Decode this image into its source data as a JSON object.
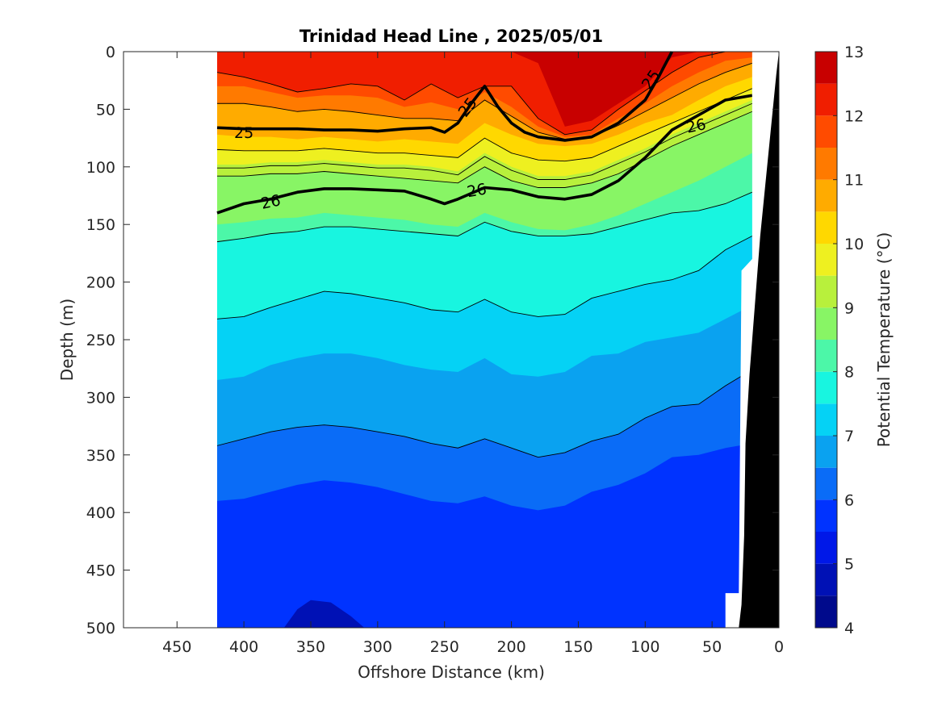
{
  "chart_data": {
    "type": "heatmap",
    "title": "Trinidad Head Line , 2025/05/01",
    "xlabel": "Offshore Distance (km)",
    "ylabel": "Depth (m)",
    "xlim": [
      490,
      0
    ],
    "ylim": [
      0,
      500
    ],
    "x_reversed": true,
    "y_reversed": true,
    "xticks": [
      450,
      400,
      350,
      300,
      250,
      200,
      150,
      100,
      50,
      0
    ],
    "yticks": [
      0,
      50,
      100,
      150,
      200,
      250,
      300,
      350,
      400,
      450,
      500
    ],
    "colorbar": {
      "label": "Potential Temperature (°C)",
      "min": 4,
      "max": 13,
      "step": 0.5,
      "ticks": [
        4,
        5,
        6,
        7,
        8,
        9,
        10,
        11,
        12,
        13
      ],
      "colors": [
        "#000a8c",
        "#0011b5",
        "#0018e8",
        "#0033ff",
        "#0a6cf7",
        "#0aa2f0",
        "#05d2f5",
        "#18f5e0",
        "#4cf7a8",
        "#88f565",
        "#b8f03c",
        "#eef020",
        "#ffd800",
        "#ffab00",
        "#ff7a00",
        "#ff4b00",
        "#f01e00",
        "#c80000"
      ]
    },
    "data_extent_x": [
      420,
      20
    ],
    "x": [
      420,
      400,
      380,
      360,
      340,
      320,
      300,
      280,
      260,
      240,
      220,
      200,
      180,
      160,
      140,
      120,
      100,
      80,
      60,
      40,
      20
    ],
    "isotherms": [
      {
        "temp": 12,
        "depth": [
          0,
          0,
          0,
          0,
          0,
          0,
          0,
          0,
          0,
          0,
          0,
          0,
          10,
          65,
          60,
          45,
          30,
          5,
          0,
          0,
          0
        ]
      },
      {
        "temp": 11.5,
        "depth": [
          18,
          22,
          28,
          35,
          32,
          28,
          30,
          42,
          28,
          40,
          30,
          30,
          58,
          72,
          68,
          50,
          34,
          18,
          5,
          0,
          0
        ]
      },
      {
        "temp": 11,
        "depth": [
          30,
          30,
          35,
          40,
          38,
          38,
          40,
          48,
          44,
          50,
          35,
          48,
          65,
          74,
          72,
          58,
          45,
          30,
          18,
          8,
          5
        ]
      },
      {
        "temp": 10.5,
        "depth": [
          45,
          45,
          48,
          52,
          50,
          52,
          55,
          58,
          58,
          60,
          42,
          56,
          70,
          76,
          74,
          64,
          52,
          40,
          28,
          18,
          10
        ]
      },
      {
        "temp": 10,
        "depth": [
          72,
          74,
          74,
          76,
          74,
          76,
          78,
          76,
          78,
          80,
          62,
          72,
          80,
          82,
          80,
          72,
          62,
          55,
          42,
          30,
          22
        ]
      },
      {
        "temp": 9.5,
        "depth": [
          85,
          86,
          86,
          86,
          84,
          86,
          88,
          88,
          90,
          92,
          75,
          88,
          94,
          95,
          92,
          82,
          72,
          62,
          52,
          42,
          32
        ]
      },
      {
        "temp": 9,
        "depth": [
          98,
          98,
          96,
          96,
          94,
          96,
          98,
          98,
          100,
          104,
          88,
          100,
          108,
          108,
          104,
          94,
          84,
          72,
          62,
          52,
          42
        ]
      },
      {
        "temp": 8.5,
        "depth": [
          108,
          108,
          106,
          106,
          104,
          106,
          108,
          110,
          112,
          114,
          100,
          112,
          118,
          118,
          114,
          106,
          94,
          82,
          72,
          62,
          52
        ]
      },
      {
        "temp": 8,
        "depth": [
          150,
          148,
          145,
          144,
          140,
          142,
          144,
          146,
          150,
          152,
          140,
          148,
          154,
          155,
          150,
          142,
          132,
          122,
          112,
          100,
          88
        ]
      },
      {
        "temp": 7.5,
        "depth": [
          165,
          162,
          158,
          156,
          152,
          152,
          154,
          156,
          158,
          160,
          148,
          156,
          160,
          160,
          158,
          152,
          146,
          140,
          138,
          132,
          122
        ]
      },
      {
        "temp": 7,
        "depth": [
          232,
          230,
          222,
          215,
          208,
          210,
          214,
          218,
          224,
          226,
          215,
          226,
          230,
          228,
          214,
          208,
          202,
          198,
          190,
          172,
          160
        ]
      },
      {
        "temp": 6.5,
        "depth": [
          285,
          282,
          272,
          266,
          262,
          262,
          266,
          272,
          276,
          278,
          266,
          280,
          282,
          278,
          264,
          262,
          252,
          248,
          244,
          232,
          220
        ]
      },
      {
        "temp": 6,
        "depth": [
          342,
          336,
          330,
          326,
          324,
          326,
          330,
          334,
          340,
          344,
          336,
          344,
          352,
          348,
          338,
          332,
          318,
          308,
          306,
          290,
          276
        ]
      },
      {
        "temp": 5.5,
        "depth": [
          390,
          388,
          382,
          376,
          372,
          374,
          378,
          384,
          390,
          392,
          386,
          394,
          398,
          394,
          382,
          376,
          366,
          352,
          350,
          344,
          340
        ]
      },
      {
        "temp": 5,
        "depth": [
          500,
          500,
          500,
          500,
          500,
          500,
          500,
          500,
          500,
          500,
          500,
          500,
          500,
          500,
          500,
          500,
          500,
          500,
          500,
          500,
          500
        ]
      }
    ],
    "density_contours": [
      {
        "label": "25",
        "x": [
          420,
          400,
          380,
          360,
          340,
          320,
          300,
          280,
          260,
          250,
          240,
          230,
          220,
          210,
          200,
          190,
          180,
          160,
          140,
          120,
          100,
          90,
          80
        ],
        "depth": [
          66,
          67,
          67,
          67,
          68,
          68,
          69,
          67,
          66,
          70,
          62,
          45,
          30,
          48,
          62,
          70,
          74,
          77,
          74,
          62,
          42,
          22,
          0
        ]
      },
      {
        "label": "26",
        "x": [
          420,
          400,
          380,
          360,
          340,
          320,
          300,
          280,
          260,
          250,
          240,
          220,
          200,
          180,
          160,
          140,
          120,
          100,
          80,
          60,
          40,
          20
        ],
        "depth": [
          140,
          132,
          128,
          122,
          119,
          119,
          120,
          121,
          128,
          132,
          128,
          118,
          120,
          126,
          128,
          124,
          112,
          92,
          68,
          55,
          42,
          38
        ]
      }
    ],
    "contour_labels": [
      {
        "text": "25",
        "x": 400,
        "depth": 70,
        "rotation": 0
      },
      {
        "text": "25",
        "x": 233,
        "depth": 48,
        "rotation": -52
      },
      {
        "text": "25",
        "x": 96,
        "depth": 24,
        "rotation": -55
      },
      {
        "text": "26",
        "x": 380,
        "depth": 130,
        "rotation": -12
      },
      {
        "text": "26",
        "x": 226,
        "depth": 120,
        "rotation": -10
      },
      {
        "text": "26",
        "x": 62,
        "depth": 64,
        "rotation": -12
      }
    ],
    "bathymetry": {
      "x": [
        0,
        2,
        8,
        14,
        18,
        22,
        25,
        26,
        28,
        30
      ],
      "depth": [
        0,
        20,
        90,
        160,
        220,
        280,
        340,
        420,
        480,
        500
      ]
    }
  }
}
